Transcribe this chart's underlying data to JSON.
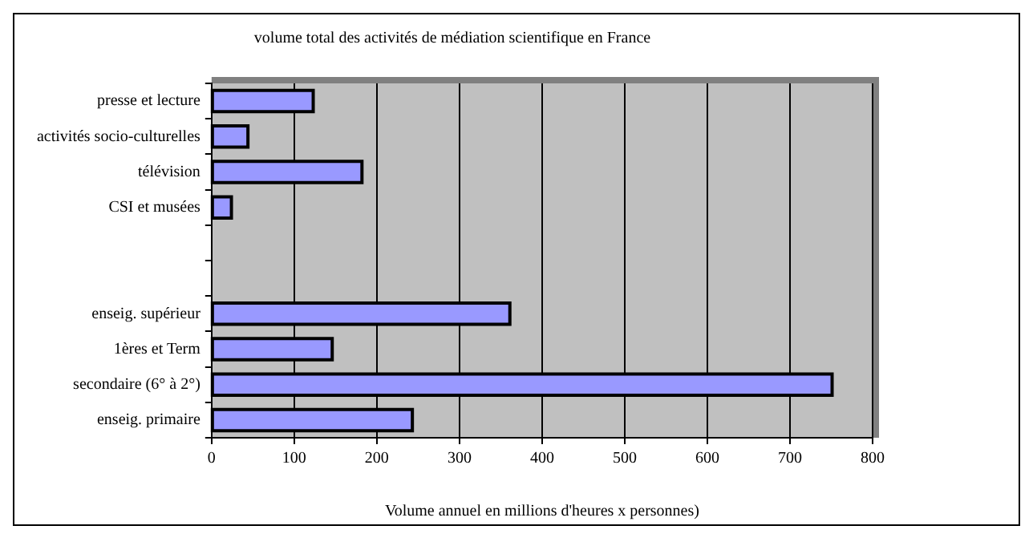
{
  "chart_data": {
    "type": "bar",
    "orientation": "horizontal",
    "title": "volume total des activités de médiation scientifique en France",
    "xlabel": "Volume annuel en millions d'heures x personnes)",
    "categories": [
      "presse et lecture",
      "activités socio-culturelles",
      "télévision",
      "CSI et musées",
      null,
      null,
      "enseig. supérieur",
      "1ères et Term",
      "secondaire (6° à 2°)",
      "enseig. primaire"
    ],
    "values": [
      123,
      44,
      182,
      24,
      null,
      null,
      361,
      146,
      751,
      243
    ],
    "color": "#9999ff",
    "xlim": [
      0,
      800
    ],
    "xticks": [
      0,
      100,
      200,
      300,
      400,
      500,
      600,
      700,
      800
    ],
    "grid": "x",
    "legend": false
  }
}
